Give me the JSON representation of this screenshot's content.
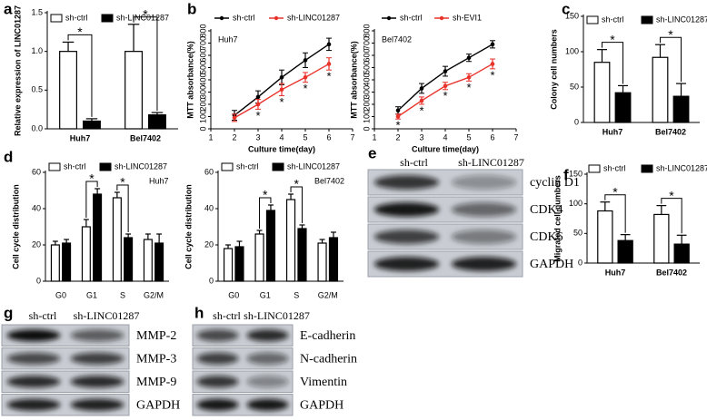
{
  "chart_data": [
    {
      "panel": "a",
      "type": "bar",
      "y_label": "Relative expression of LINC01287",
      "categories": [
        "Huh7",
        "Bel7402"
      ],
      "series": [
        {
          "name": "sh-ctrl",
          "color": "#ffffff",
          "values": [
            1.0,
            1.0
          ],
          "errors": [
            0.12,
            0.35
          ]
        },
        {
          "name": "sh-LINC01287",
          "color": "#000000",
          "values": [
            0.1,
            0.18
          ],
          "errors": [
            0.03,
            0.03
          ]
        }
      ],
      "significance": [
        "*",
        "*"
      ],
      "ylim": [
        0,
        1.5
      ],
      "yticks": [
        {
          "value": 0,
          "label": "0.0"
        },
        {
          "value": 0.5,
          "label": "0.5"
        },
        {
          "value": 1,
          "label": "1.0"
        },
        {
          "value": 1.5,
          "label": "1.5"
        }
      ]
    },
    {
      "panel": "b",
      "type": "line",
      "annotation": "Huh7",
      "x_label": "Culture time(day)",
      "y_label": "MTT absorbance(%)",
      "x": [
        2,
        3,
        4,
        5,
        6
      ],
      "series": [
        {
          "name": "sh-ctrl",
          "color": "#000000",
          "values": [
            110,
            260,
            420,
            560,
            690
          ],
          "errors": [
            40,
            50,
            60,
            60,
            50
          ]
        },
        {
          "name": "sh-LINC01287",
          "color": "#e8322a",
          "values": [
            90,
            200,
            320,
            420,
            530
          ],
          "errors": [
            30,
            40,
            50,
            40,
            50
          ]
        }
      ],
      "significance": [
        null,
        "*",
        "*",
        "*",
        "*"
      ],
      "xlim": [
        1,
        7
      ],
      "xticks": [
        1,
        2,
        3,
        4,
        5,
        6,
        7
      ],
      "ylim": [
        0,
        800
      ],
      "yticks": [
        0,
        100,
        200,
        300,
        400,
        500,
        600,
        700,
        800
      ]
    },
    {
      "type": "line",
      "annotation": "Bel7402",
      "x_label": "Culture time(day)",
      "y_label": "MTT absorbance(%)",
      "x": [
        2,
        3,
        4,
        5,
        6
      ],
      "series": [
        {
          "name": "sh-ctrl",
          "color": "#000000",
          "values": [
            150,
            330,
            470,
            580,
            690
          ],
          "errors": [
            30,
            40,
            40,
            30,
            30
          ]
        },
        {
          "name": "sh-EVI1",
          "color": "#e8322a",
          "values": [
            100,
            230,
            350,
            420,
            530
          ],
          "errors": [
            20,
            30,
            30,
            30,
            40
          ]
        }
      ],
      "significance": [
        "*",
        "*",
        "*",
        "*",
        "*"
      ],
      "xlim": [
        1,
        7
      ],
      "xticks": [
        1,
        2,
        3,
        4,
        5,
        6,
        7
      ],
      "ylim": [
        0,
        800
      ],
      "yticks": [
        0,
        100,
        200,
        300,
        400,
        500,
        600,
        700,
        800
      ]
    },
    {
      "panel": "c",
      "type": "bar",
      "y_label": "Colony cell numbers",
      "categories": [
        "Huh7",
        "Bel7402"
      ],
      "series": [
        {
          "name": "sh-ctrl",
          "color": "#ffffff",
          "values": [
            85,
            92
          ],
          "errors": [
            18,
            18
          ]
        },
        {
          "name": "sh-LINC01287",
          "color": "#000000",
          "values": [
            42,
            37
          ],
          "errors": [
            10,
            18
          ]
        }
      ],
      "significance": [
        "*",
        "*"
      ],
      "ylim": [
        0,
        150
      ],
      "yticks": [
        0,
        50,
        100,
        150
      ]
    },
    {
      "panel": "d",
      "type": "bar",
      "annotation": "Huh7",
      "y_label": "Cell cycle distribution",
      "categories": [
        "G0",
        "G1",
        "S",
        "G2/M"
      ],
      "series": [
        {
          "name": "sh-ctrl",
          "color": "#ffffff",
          "values": [
            20,
            30,
            46,
            23
          ],
          "errors": [
            2,
            4,
            3,
            3
          ]
        },
        {
          "name": "sh-LINC01287",
          "color": "#000000",
          "values": [
            21,
            48,
            24,
            21
          ],
          "errors": [
            2,
            3,
            2,
            5
          ]
        }
      ],
      "significance": [
        null,
        "*",
        "*",
        null
      ],
      "ylim": [
        0,
        60
      ],
      "yticks": [
        0,
        20,
        40,
        60
      ]
    },
    {
      "type": "bar",
      "annotation": "Bel7402",
      "y_label": "Cell cycle distribution",
      "categories": [
        "G0",
        "G1",
        "S",
        "G2/M"
      ],
      "series": [
        {
          "name": "sh-ctrl",
          "color": "#ffffff",
          "values": [
            18,
            26,
            45,
            21
          ],
          "errors": [
            2,
            2,
            3,
            2
          ]
        },
        {
          "name": "sh-LINC01287",
          "color": "#000000",
          "values": [
            19,
            39,
            29,
            24
          ],
          "errors": [
            3,
            3,
            2,
            3
          ]
        }
      ],
      "significance": [
        null,
        "*",
        "*",
        null
      ],
      "ylim": [
        0,
        60
      ],
      "yticks": [
        0,
        20,
        40,
        60
      ]
    },
    {
      "panel": "f",
      "type": "bar",
      "y_label": "Migrated cell numbers",
      "categories": [
        "Huh7",
        "Bel7402"
      ],
      "series": [
        {
          "name": "sh-ctrl",
          "color": "#ffffff",
          "values": [
            88,
            82
          ],
          "errors": [
            15,
            15
          ]
        },
        {
          "name": "sh-LINC01287",
          "color": "#000000",
          "values": [
            38,
            32
          ],
          "errors": [
            10,
            15
          ]
        }
      ],
      "significance": [
        "*",
        "*"
      ],
      "ylim": [
        0,
        150
      ],
      "yticks": [
        0,
        50,
        100,
        150
      ]
    }
  ],
  "blots": [
    {
      "panel": "e",
      "columns": [
        "sh-ctrl",
        "sh-LINC01287"
      ],
      "rows": [
        "cyclin D1",
        "CDK4",
        "CDK6",
        "GAPDH"
      ]
    },
    {
      "panel": "g",
      "columns": [
        "sh-ctrl",
        "sh-LINC01287"
      ],
      "rows": [
        "MMP-2",
        "MMP-3",
        "MMP-9",
        "GAPDH"
      ]
    },
    {
      "panel": "h",
      "columns": [
        "sh-ctrl",
        "sh-LINC01287"
      ],
      "rows": [
        "E-cadherin",
        "N-cadherin",
        "Vimentin",
        "GAPDH"
      ]
    }
  ]
}
